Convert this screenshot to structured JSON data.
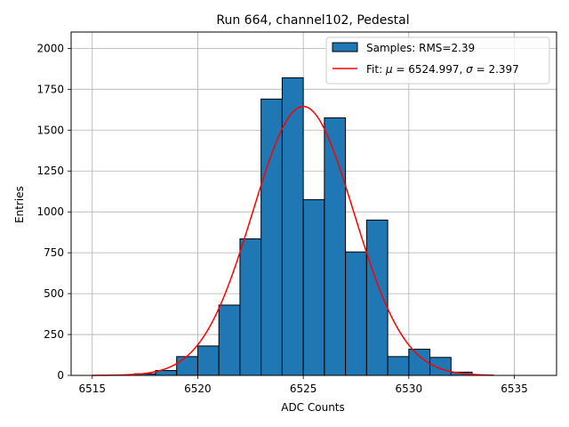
{
  "chart_data": {
    "type": "bar",
    "title": "Run 664, channel102, Pedestal",
    "xlabel": "ADC Counts",
    "ylabel": "Entries",
    "xlim": [
      6514.0,
      6537.0
    ],
    "ylim": [
      0,
      2100
    ],
    "xticks": [
      "6515",
      "6520",
      "6525",
      "6530",
      "6535"
    ],
    "xtick_values": [
      6515,
      6520,
      6525,
      6530,
      6535
    ],
    "yticks": [
      "0",
      "250",
      "500",
      "750",
      "1000",
      "1250",
      "1500",
      "1750",
      "2000"
    ],
    "ytick_values": [
      0,
      250,
      500,
      750,
      1000,
      1250,
      1500,
      1750,
      2000
    ],
    "grid": true,
    "legend_position": "top-right",
    "histogram": {
      "name": "Samples: RMS=2.39",
      "color": "#1f77b4",
      "edge_color": "#000000",
      "bins": [
        {
          "x0": 6515.0,
          "x1": 6516.0,
          "count": 0
        },
        {
          "x0": 6516.0,
          "x1": 6517.0,
          "count": 2
        },
        {
          "x0": 6517.0,
          "x1": 6518.0,
          "count": 10
        },
        {
          "x0": 6518.0,
          "x1": 6519.0,
          "count": 30
        },
        {
          "x0": 6519.0,
          "x1": 6520.0,
          "count": 115
        },
        {
          "x0": 6520.0,
          "x1": 6521.0,
          "count": 180
        },
        {
          "x0": 6521.0,
          "x1": 6522.0,
          "count": 430
        },
        {
          "x0": 6522.0,
          "x1": 6523.0,
          "count": 835
        },
        {
          "x0": 6523.0,
          "x1": 6524.0,
          "count": 1690
        },
        {
          "x0": 6524.0,
          "x1": 6525.0,
          "count": 1820
        },
        {
          "x0": 6525.0,
          "x1": 6526.0,
          "count": 1075
        },
        {
          "x0": 6526.0,
          "x1": 6527.0,
          "count": 1575
        },
        {
          "x0": 6527.0,
          "x1": 6528.0,
          "count": 755
        },
        {
          "x0": 6528.0,
          "x1": 6529.0,
          "count": 950
        },
        {
          "x0": 6529.0,
          "x1": 6530.0,
          "count": 115
        },
        {
          "x0": 6530.0,
          "x1": 6531.0,
          "count": 160
        },
        {
          "x0": 6531.0,
          "x1": 6532.0,
          "count": 110
        },
        {
          "x0": 6532.0,
          "x1": 6533.0,
          "count": 20
        },
        {
          "x0": 6533.0,
          "x1": 6534.0,
          "count": 3
        },
        {
          "x0": 6534.0,
          "x1": 6535.0,
          "count": 0
        },
        {
          "x0": 6535.0,
          "x1": 6536.0,
          "count": 0
        }
      ]
    },
    "fit": {
      "name": "Fit: μ = 6524.997, σ = 2.397",
      "name_mu": "μ",
      "name_sigma": "σ",
      "name_prefix": "Fit: ",
      "name_mid": " = 6524.997, ",
      "name_suffix": " = 2.397",
      "color": "#ff0000",
      "mu": 6524.997,
      "sigma": 2.397,
      "amplitude": 1645,
      "x_range": [
        6515.0,
        6534.0
      ]
    }
  }
}
